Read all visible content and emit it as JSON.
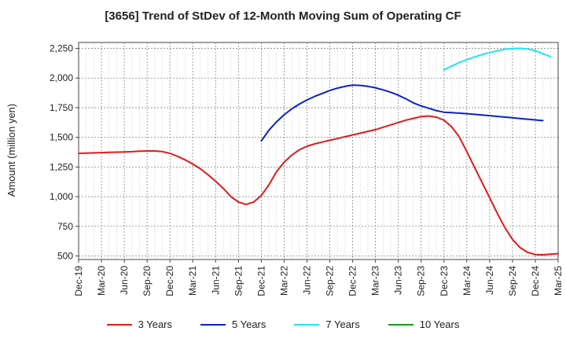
{
  "chart_data": {
    "type": "line",
    "title": "[3656]  Trend of StDev of 12-Month Moving Sum of Operating CF",
    "xlabel": "",
    "ylabel": "Amount (million yen)",
    "ylim": [
      470,
      2300
    ],
    "yticks": [
      500,
      750,
      1000,
      1250,
      1500,
      1750,
      2000,
      2250
    ],
    "ytick_labels": [
      "500",
      "750",
      "1,000",
      "1,250",
      "1,500",
      "1,750",
      "2,000",
      "2,250"
    ],
    "x_tick_labels": [
      "Dec-19",
      "Mar-20",
      "Jun-20",
      "Sep-20",
      "Dec-20",
      "Mar-21",
      "Jun-21",
      "Sep-21",
      "Dec-21",
      "Mar-22",
      "Jun-22",
      "Sep-22",
      "Dec-22",
      "Mar-23",
      "Jun-23",
      "Sep-23",
      "Dec-23",
      "Mar-24",
      "Jun-24",
      "Sep-24",
      "Dec-24",
      "Mar-25"
    ],
    "grid": true,
    "legend_position": "bottom",
    "series": [
      {
        "name": "3 Years",
        "color": "#e31a1c",
        "start_month": "Dec-19",
        "values": [
          1365,
          1367,
          1369,
          1371,
          1373,
          1375,
          1377,
          1379,
          1383,
          1385,
          1385,
          1380,
          1365,
          1340,
          1310,
          1275,
          1235,
          1185,
          1130,
          1070,
          1000,
          955,
          935,
          955,
          1010,
          1100,
          1210,
          1290,
          1350,
          1395,
          1425,
          1445,
          1460,
          1475,
          1490,
          1505,
          1520,
          1535,
          1550,
          1565,
          1585,
          1605,
          1625,
          1645,
          1660,
          1675,
          1680,
          1670,
          1645,
          1590,
          1505,
          1380,
          1250,
          1120,
          990,
          860,
          740,
          640,
          570,
          530,
          512,
          510,
          515,
          520
        ]
      },
      {
        "name": "5 Years",
        "color": "#0a22c8",
        "start_month": "Dec-21",
        "values": [
          1470,
          1560,
          1630,
          1690,
          1740,
          1780,
          1815,
          1845,
          1870,
          1895,
          1915,
          1930,
          1940,
          1938,
          1930,
          1918,
          1900,
          1880,
          1855,
          1825,
          1790,
          1765,
          1745,
          1725,
          1712,
          1708,
          1704,
          1699,
          1694,
          1689,
          1683,
          1677,
          1671,
          1665,
          1659,
          1653,
          1647,
          1641
        ]
      },
      {
        "name": "7 Years",
        "color": "#1ee6f0",
        "start_month": "Dec-23",
        "values": [
          2070,
          2100,
          2130,
          2155,
          2178,
          2198,
          2215,
          2230,
          2242,
          2248,
          2250,
          2245,
          2230,
          2205,
          2180
        ]
      },
      {
        "name": "10 Years",
        "color": "#1a9a1a",
        "start_month": "",
        "values": []
      }
    ]
  }
}
